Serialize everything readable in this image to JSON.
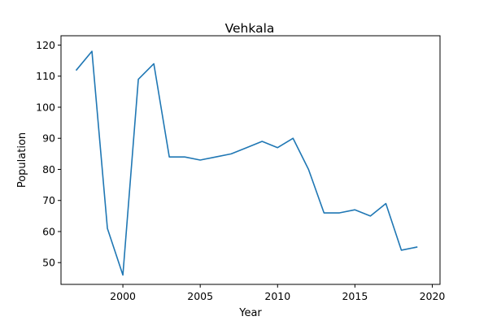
{
  "chart_data": {
    "type": "line",
    "title": "Vehkala",
    "xlabel": "Year",
    "ylabel": "Population",
    "xlim": [
      1996,
      2020.5
    ],
    "ylim": [
      43,
      123
    ],
    "xticks": [
      2000,
      2005,
      2010,
      2015,
      2020
    ],
    "yticks": [
      50,
      60,
      70,
      80,
      90,
      100,
      110,
      120
    ],
    "grid": false,
    "series": [
      {
        "color": "#1f77b4",
        "x": [
          1997,
          1998,
          1999,
          2000,
          2001,
          2002,
          2003,
          2004,
          2005,
          2006,
          2007,
          2008,
          2009,
          2010,
          2011,
          2012,
          2013,
          2014,
          2015,
          2016,
          2017,
          2018,
          2019
        ],
        "y": [
          112,
          118,
          61,
          46,
          109,
          114,
          84,
          84,
          83,
          84,
          85,
          87,
          89,
          87,
          90,
          80,
          66,
          66,
          67,
          65,
          69,
          54,
          55
        ]
      }
    ]
  }
}
